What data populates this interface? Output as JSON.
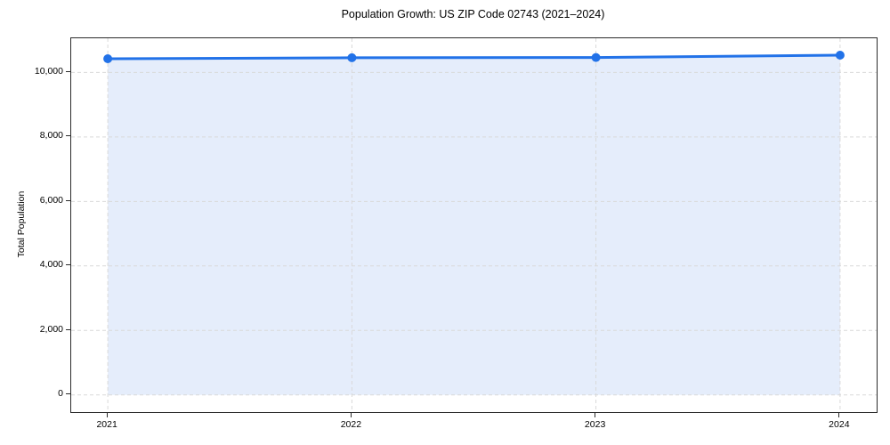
{
  "chart_data": {
    "type": "line",
    "title": "Population Growth: US ZIP Code 02743 (2021–2024)",
    "xlabel": "",
    "ylabel": "Total Population",
    "x": [
      2021,
      2022,
      2023,
      2024
    ],
    "values": [
      10425,
      10455,
      10465,
      10535
    ],
    "xtick_values": [
      2021,
      2022,
      2023,
      2024
    ],
    "xtick_labels": [
      "2021",
      "2022",
      "2023",
      "2024"
    ],
    "ytick_values": [
      0,
      2000,
      4000,
      6000,
      8000,
      10000
    ],
    "ytick_labels": [
      "0",
      "2,000",
      "4,000",
      "6,000",
      "8,000",
      "10,000"
    ],
    "xlim": [
      2020.85,
      2024.15
    ],
    "ylim": [
      -530,
      11060
    ],
    "grid": true,
    "grid_style": "dashed",
    "legend": "none",
    "marker": "circle",
    "area_fill": true,
    "area_fill_baseline": 0,
    "colors": {
      "line": "#2272e8",
      "marker": "#2272e8",
      "area_fill": "#e5edfb",
      "grid": "#d9d9d9",
      "axis": "#2b2b2b",
      "text": "#000000",
      "background": "#ffffff"
    }
  }
}
